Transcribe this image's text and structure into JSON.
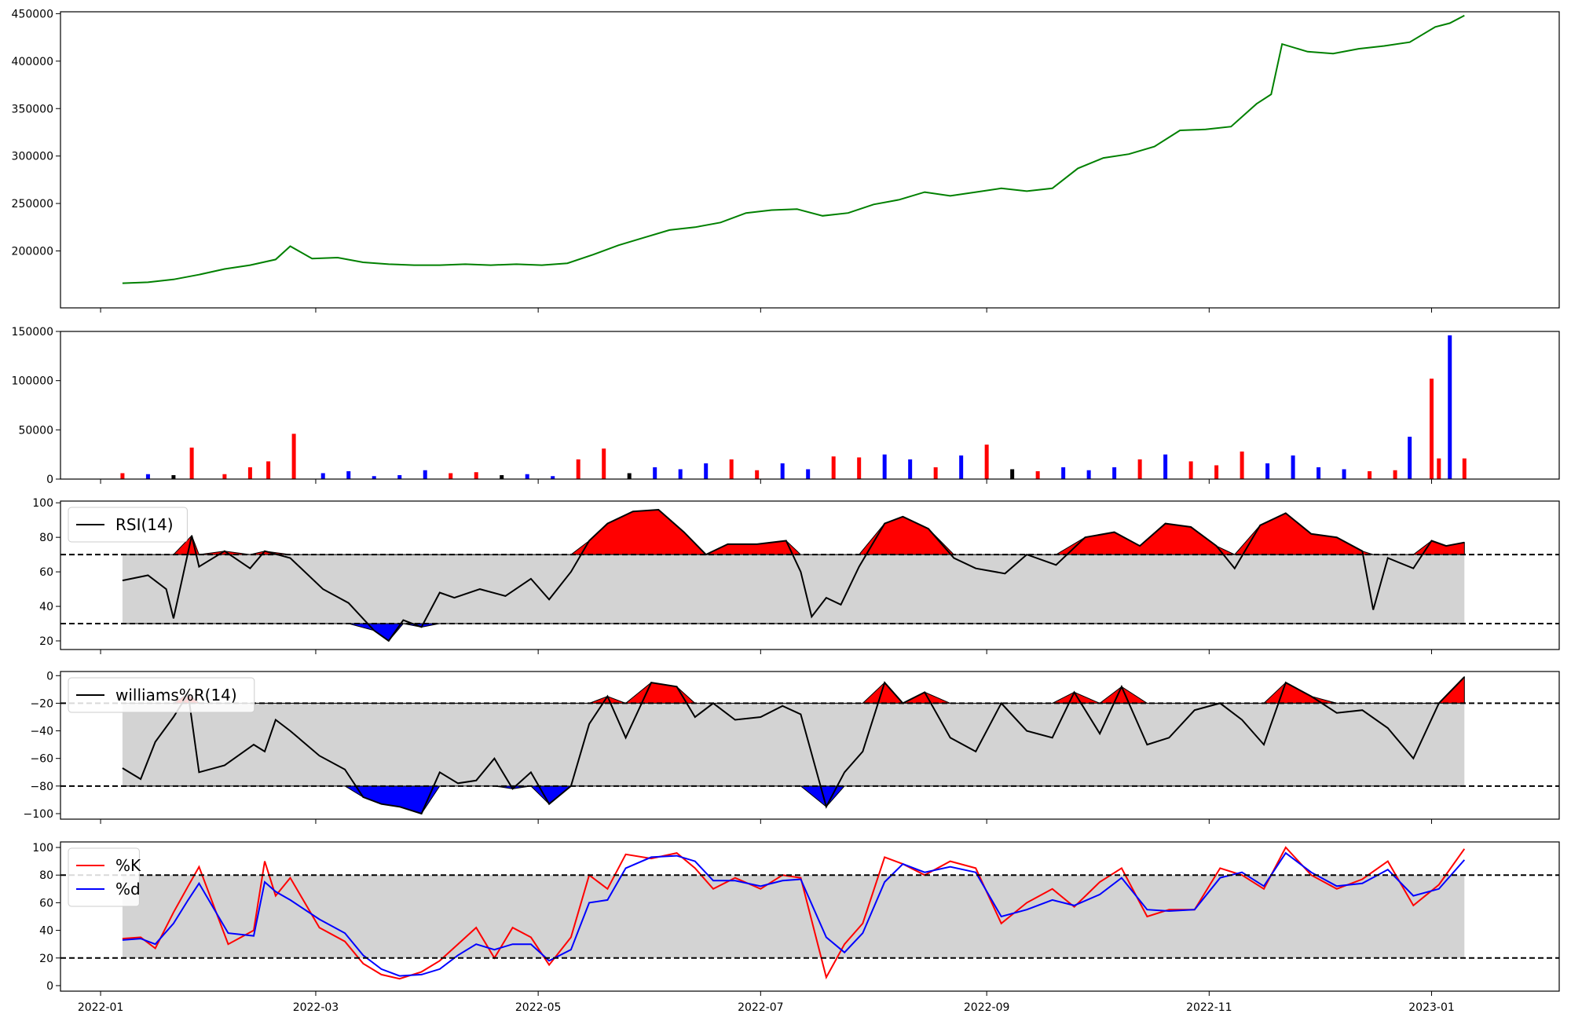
{
  "chart_data": [
    {
      "type": "line",
      "ylim": [
        140000,
        452000
      ],
      "yticks": [
        200000,
        250000,
        300000,
        350000,
        400000,
        450000
      ],
      "series": [
        {
          "color": "#008000",
          "x": [
            "2022-01-07",
            "2022-01-14",
            "2022-01-21",
            "2022-01-28",
            "2022-02-04",
            "2022-02-11",
            "2022-02-18",
            "2022-02-22",
            "2022-02-28",
            "2022-03-07",
            "2022-03-14",
            "2022-03-21",
            "2022-03-28",
            "2022-04-04",
            "2022-04-11",
            "2022-04-18",
            "2022-04-25",
            "2022-05-02",
            "2022-05-09",
            "2022-05-16",
            "2022-05-23",
            "2022-05-30",
            "2022-06-06",
            "2022-06-13",
            "2022-06-20",
            "2022-06-27",
            "2022-07-04",
            "2022-07-11",
            "2022-07-18",
            "2022-07-25",
            "2022-08-01",
            "2022-08-08",
            "2022-08-15",
            "2022-08-22",
            "2022-08-29",
            "2022-09-05",
            "2022-09-12",
            "2022-09-19",
            "2022-09-26",
            "2022-10-03",
            "2022-10-10",
            "2022-10-17",
            "2022-10-24",
            "2022-10-31",
            "2022-11-07",
            "2022-11-14",
            "2022-11-18",
            "2022-11-21",
            "2022-11-28",
            "2022-12-05",
            "2022-12-12",
            "2022-12-19",
            "2022-12-26",
            "2023-01-02",
            "2023-01-06",
            "2023-01-10"
          ],
          "y": [
            166000,
            167000,
            170000,
            175000,
            181000,
            185000,
            191000,
            205000,
            192000,
            193000,
            188000,
            186000,
            185000,
            185000,
            186000,
            185000,
            186000,
            185000,
            187000,
            196000,
            206000,
            214000,
            222000,
            225000,
            230000,
            240000,
            243000,
            244000,
            237000,
            240000,
            249000,
            254000,
            262000,
            258000,
            262000,
            266000,
            263000,
            266000,
            287000,
            298000,
            302000,
            310000,
            327000,
            328000,
            331000,
            355000,
            365000,
            418000,
            410000,
            408000,
            413000,
            416000,
            420000,
            436000,
            440000,
            448000
          ]
        }
      ]
    },
    {
      "type": "bar",
      "ylim": [
        0,
        150000
      ],
      "yticks": [
        0,
        50000,
        100000,
        150000
      ],
      "colors": {
        "up": "#ff0000",
        "down": "#0000ff",
        "flat": "#000000"
      },
      "x": [
        "2022-01-07",
        "2022-01-14",
        "2022-01-21",
        "2022-01-26",
        "2022-02-04",
        "2022-02-11",
        "2022-02-16",
        "2022-02-23",
        "2022-03-03",
        "2022-03-10",
        "2022-03-17",
        "2022-03-24",
        "2022-03-31",
        "2022-04-07",
        "2022-04-14",
        "2022-04-21",
        "2022-04-28",
        "2022-05-05",
        "2022-05-12",
        "2022-05-19",
        "2022-05-26",
        "2022-06-02",
        "2022-06-09",
        "2022-06-16",
        "2022-06-23",
        "2022-06-30",
        "2022-07-07",
        "2022-07-14",
        "2022-07-21",
        "2022-07-28",
        "2022-08-04",
        "2022-08-11",
        "2022-08-18",
        "2022-08-25",
        "2022-09-01",
        "2022-09-08",
        "2022-09-15",
        "2022-09-22",
        "2022-09-29",
        "2022-10-06",
        "2022-10-13",
        "2022-10-20",
        "2022-10-27",
        "2022-11-03",
        "2022-11-10",
        "2022-11-17",
        "2022-11-24",
        "2022-12-01",
        "2022-12-08",
        "2022-12-15",
        "2022-12-22",
        "2022-12-26",
        "2023-01-01",
        "2023-01-03",
        "2023-01-06",
        "2023-01-10"
      ],
      "values": [
        6000,
        5000,
        4000,
        32000,
        5000,
        12000,
        18000,
        46000,
        6000,
        8000,
        3000,
        4000,
        9000,
        6000,
        7000,
        4000,
        5000,
        3000,
        20000,
        31000,
        6000,
        12000,
        10000,
        16000,
        20000,
        9000,
        16000,
        10000,
        23000,
        22000,
        25000,
        20000,
        12000,
        24000,
        35000,
        10000,
        8000,
        12000,
        9000,
        12000,
        20000,
        25000,
        18000,
        14000,
        28000,
        16000,
        24000,
        12000,
        10000,
        8000,
        9000,
        43000,
        102000,
        21000,
        146000,
        21000
      ],
      "direction": [
        "up",
        "down",
        "flat",
        "up",
        "up",
        "up",
        "up",
        "up",
        "down",
        "down",
        "down",
        "down",
        "down",
        "up",
        "up",
        "flat",
        "down",
        "down",
        "up",
        "up",
        "flat",
        "down",
        "down",
        "down",
        "up",
        "up",
        "down",
        "down",
        "up",
        "up",
        "down",
        "down",
        "up",
        "down",
        "up",
        "flat",
        "up",
        "down",
        "down",
        "down",
        "up",
        "down",
        "up",
        "up",
        "up",
        "down",
        "down",
        "down",
        "down",
        "up",
        "up",
        "down",
        "up",
        "up",
        "down",
        "up"
      ]
    },
    {
      "type": "line",
      "legend": [
        "RSI(14)"
      ],
      "ylim": [
        15,
        101
      ],
      "yticks": [
        20,
        40,
        60,
        80,
        100
      ],
      "hlines": [
        70,
        30
      ],
      "band": [
        30,
        70
      ],
      "fill_colors": {
        "above": "#ff0000",
        "below": "#0000ff",
        "band": "#d3d3d3"
      },
      "series": [
        {
          "name": "RSI(14)",
          "color": "#000000",
          "x": [
            "2022-01-07",
            "2022-01-14",
            "2022-01-19",
            "2022-01-21",
            "2022-01-26",
            "2022-01-28",
            "2022-02-04",
            "2022-02-11",
            "2022-02-15",
            "2022-02-22",
            "2022-03-03",
            "2022-03-10",
            "2022-03-17",
            "2022-03-21",
            "2022-03-25",
            "2022-03-30",
            "2022-04-04",
            "2022-04-08",
            "2022-04-15",
            "2022-04-22",
            "2022-04-29",
            "2022-05-04",
            "2022-05-10",
            "2022-05-15",
            "2022-05-20",
            "2022-05-27",
            "2022-06-03",
            "2022-06-10",
            "2022-06-16",
            "2022-06-22",
            "2022-06-30",
            "2022-07-08",
            "2022-07-12",
            "2022-07-15",
            "2022-07-19",
            "2022-07-23",
            "2022-07-28",
            "2022-08-04",
            "2022-08-09",
            "2022-08-16",
            "2022-08-23",
            "2022-08-29",
            "2022-09-06",
            "2022-09-12",
            "2022-09-20",
            "2022-09-28",
            "2022-10-06",
            "2022-10-13",
            "2022-10-20",
            "2022-10-27",
            "2022-11-03",
            "2022-11-08",
            "2022-11-15",
            "2022-11-22",
            "2022-11-29",
            "2022-12-06",
            "2022-12-13",
            "2022-12-16",
            "2022-12-20",
            "2022-12-27",
            "2023-01-01",
            "2023-01-05",
            "2023-01-10"
          ],
          "y": [
            55,
            58,
            50,
            33,
            81,
            63,
            72,
            62,
            72,
            68,
            50,
            42,
            26,
            20,
            32,
            28,
            48,
            45,
            50,
            46,
            56,
            44,
            60,
            78,
            88,
            95,
            96,
            83,
            70,
            76,
            76,
            78,
            60,
            34,
            45,
            41,
            63,
            88,
            92,
            85,
            68,
            62,
            59,
            70,
            64,
            80,
            83,
            75,
            88,
            86,
            75,
            62,
            87,
            94,
            82,
            80,
            72,
            38,
            68,
            62,
            78,
            75,
            77
          ]
        }
      ]
    },
    {
      "type": "line",
      "legend": [
        "williams%R(14)"
      ],
      "ylim": [
        -104,
        3
      ],
      "yticks": [
        0,
        -20,
        -40,
        -60,
        -80,
        -100
      ],
      "hlines": [
        -20,
        -80
      ],
      "band": [
        -80,
        -20
      ],
      "fill_colors": {
        "above": "#ff0000",
        "below": "#0000ff",
        "band": "#d3d3d3"
      },
      "series": [
        {
          "name": "williams%R(14)",
          "color": "#000000",
          "x": [
            "2022-01-07",
            "2022-01-12",
            "2022-01-16",
            "2022-01-21",
            "2022-01-25",
            "2022-01-28",
            "2022-02-04",
            "2022-02-12",
            "2022-02-15",
            "2022-02-18",
            "2022-02-22",
            "2022-03-02",
            "2022-03-09",
            "2022-03-14",
            "2022-03-19",
            "2022-03-24",
            "2022-03-30",
            "2022-04-04",
            "2022-04-09",
            "2022-04-14",
            "2022-04-19",
            "2022-04-24",
            "2022-04-29",
            "2022-05-04",
            "2022-05-10",
            "2022-05-15",
            "2022-05-20",
            "2022-05-25",
            "2022-06-01",
            "2022-06-08",
            "2022-06-13",
            "2022-06-18",
            "2022-06-24",
            "2022-07-01",
            "2022-07-07",
            "2022-07-12",
            "2022-07-19",
            "2022-07-24",
            "2022-07-29",
            "2022-08-04",
            "2022-08-09",
            "2022-08-15",
            "2022-08-22",
            "2022-08-29",
            "2022-09-05",
            "2022-09-12",
            "2022-09-19",
            "2022-09-25",
            "2022-10-02",
            "2022-10-08",
            "2022-10-15",
            "2022-10-21",
            "2022-10-28",
            "2022-11-04",
            "2022-11-10",
            "2022-11-16",
            "2022-11-22",
            "2022-11-29",
            "2022-12-06",
            "2022-12-13",
            "2022-12-20",
            "2022-12-27",
            "2023-01-03",
            "2023-01-10"
          ],
          "y": [
            -67,
            -75,
            -48,
            -30,
            -13,
            -70,
            -65,
            -50,
            -55,
            -32,
            -40,
            -58,
            -68,
            -88,
            -93,
            -95,
            -100,
            -70,
            -78,
            -76,
            -60,
            -82,
            -70,
            -93,
            -80,
            -35,
            -15,
            -45,
            -5,
            -8,
            -30,
            -20,
            -32,
            -30,
            -22,
            -28,
            -95,
            -70,
            -55,
            -5,
            -20,
            -12,
            -45,
            -55,
            -20,
            -40,
            -45,
            -12,
            -42,
            -8,
            -50,
            -45,
            -25,
            -20,
            -32,
            -50,
            -5,
            -15,
            -27,
            -25,
            -38,
            -60,
            -20,
            -1
          ]
        }
      ]
    },
    {
      "type": "line",
      "legend": [
        "%K",
        "%d"
      ],
      "xticks": [
        "2022-01",
        "2022-03",
        "2022-05",
        "2022-07",
        "2022-09",
        "2022-11",
        "2023-01"
      ],
      "ylim": [
        -4,
        104
      ],
      "yticks": [
        0,
        20,
        40,
        60,
        80,
        100
      ],
      "hlines": [
        80,
        20
      ],
      "band": [
        20,
        80
      ],
      "fill_colors": {
        "band": "#d3d3d3"
      },
      "series": [
        {
          "name": "%K",
          "color": "#ff0000",
          "x": [
            "2022-01-07",
            "2022-01-12",
            "2022-01-16",
            "2022-01-21",
            "2022-01-25",
            "2022-01-28",
            "2022-02-05",
            "2022-02-12",
            "2022-02-15",
            "2022-02-18",
            "2022-02-22",
            "2022-03-02",
            "2022-03-09",
            "2022-03-14",
            "2022-03-19",
            "2022-03-24",
            "2022-03-30",
            "2022-04-04",
            "2022-04-09",
            "2022-04-14",
            "2022-04-19",
            "2022-04-24",
            "2022-04-29",
            "2022-05-04",
            "2022-05-10",
            "2022-05-15",
            "2022-05-20",
            "2022-05-25",
            "2022-06-01",
            "2022-06-08",
            "2022-06-13",
            "2022-06-18",
            "2022-06-24",
            "2022-07-01",
            "2022-07-07",
            "2022-07-12",
            "2022-07-19",
            "2022-07-24",
            "2022-07-29",
            "2022-08-04",
            "2022-08-09",
            "2022-08-15",
            "2022-08-22",
            "2022-08-29",
            "2022-09-05",
            "2022-09-12",
            "2022-09-19",
            "2022-09-25",
            "2022-10-02",
            "2022-10-08",
            "2022-10-15",
            "2022-10-21",
            "2022-10-28",
            "2022-11-04",
            "2022-11-10",
            "2022-11-16",
            "2022-11-22",
            "2022-11-29",
            "2022-12-06",
            "2022-12-13",
            "2022-12-20",
            "2022-12-27",
            "2023-01-03",
            "2023-01-10"
          ],
          "y": [
            34,
            35,
            27,
            53,
            72,
            86,
            30,
            40,
            90,
            65,
            78,
            42,
            32,
            16,
            8,
            5,
            10,
            18,
            30,
            42,
            20,
            42,
            35,
            15,
            35,
            80,
            70,
            95,
            92,
            96,
            85,
            70,
            78,
            70,
            80,
            78,
            6,
            30,
            45,
            93,
            88,
            80,
            90,
            85,
            45,
            60,
            70,
            57,
            75,
            85,
            50,
            55,
            55,
            85,
            80,
            70,
            100,
            80,
            70,
            77,
            90,
            58,
            73,
            99
          ]
        },
        {
          "name": "%d",
          "color": "#0000ff",
          "x": [
            "2022-01-07",
            "2022-01-12",
            "2022-01-16",
            "2022-01-21",
            "2022-01-25",
            "2022-01-28",
            "2022-02-05",
            "2022-02-12",
            "2022-02-15",
            "2022-02-18",
            "2022-02-22",
            "2022-03-02",
            "2022-03-09",
            "2022-03-14",
            "2022-03-19",
            "2022-03-24",
            "2022-03-30",
            "2022-04-04",
            "2022-04-09",
            "2022-04-14",
            "2022-04-19",
            "2022-04-24",
            "2022-04-29",
            "2022-05-04",
            "2022-05-10",
            "2022-05-15",
            "2022-05-20",
            "2022-05-25",
            "2022-06-01",
            "2022-06-08",
            "2022-06-13",
            "2022-06-18",
            "2022-06-24",
            "2022-07-01",
            "2022-07-07",
            "2022-07-12",
            "2022-07-19",
            "2022-07-24",
            "2022-07-29",
            "2022-08-04",
            "2022-08-09",
            "2022-08-15",
            "2022-08-22",
            "2022-08-29",
            "2022-09-05",
            "2022-09-12",
            "2022-09-19",
            "2022-09-25",
            "2022-10-02",
            "2022-10-08",
            "2022-10-15",
            "2022-10-21",
            "2022-10-28",
            "2022-11-04",
            "2022-11-10",
            "2022-11-16",
            "2022-11-22",
            "2022-11-29",
            "2022-12-06",
            "2022-12-13",
            "2022-12-20",
            "2022-12-27",
            "2023-01-03",
            "2023-01-10"
          ],
          "y": [
            33,
            34,
            30,
            45,
            62,
            74,
            38,
            36,
            75,
            68,
            62,
            48,
            38,
            22,
            12,
            7,
            8,
            12,
            22,
            30,
            26,
            30,
            30,
            18,
            26,
            60,
            62,
            85,
            93,
            94,
            90,
            76,
            76,
            72,
            76,
            77,
            35,
            24,
            38,
            75,
            88,
            82,
            86,
            82,
            50,
            55,
            62,
            58,
            66,
            78,
            55,
            54,
            55,
            78,
            82,
            72,
            96,
            82,
            72,
            74,
            84,
            65,
            70,
            91
          ]
        }
      ]
    }
  ]
}
